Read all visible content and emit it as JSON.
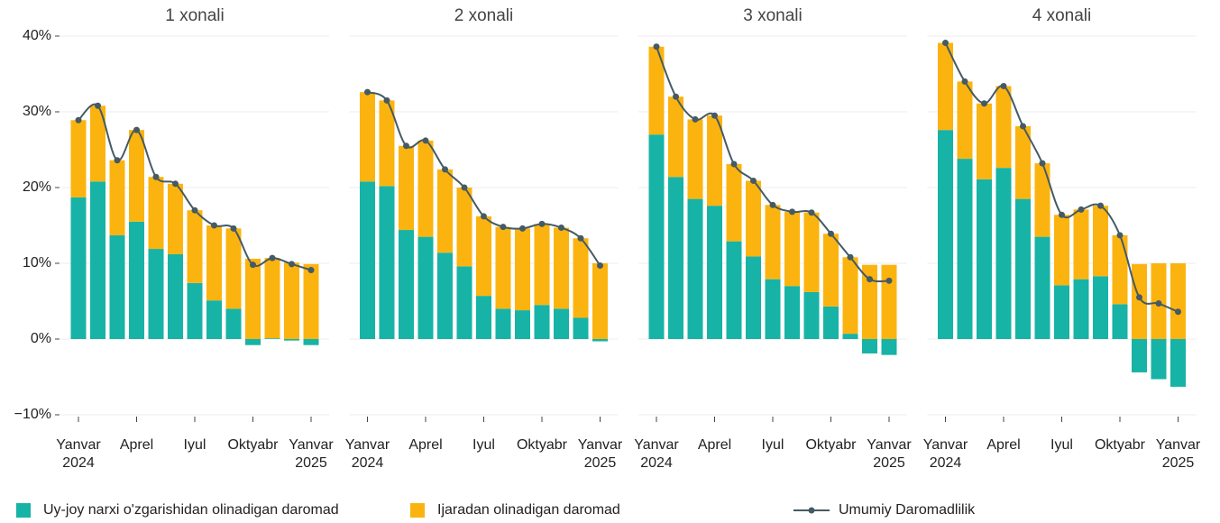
{
  "chart_data": [
    {
      "type": "bar",
      "stacked": true,
      "title": "1 xonali",
      "categories": [
        "Yanvar\n2024",
        null,
        null,
        "Aprel",
        null,
        null,
        "Iyul",
        null,
        null,
        "Oktyabr",
        null,
        null,
        "Yanvar\n2025"
      ],
      "ylim": [
        -10,
        40
      ],
      "yticks": [
        {
          "value": -10,
          "label": "−10%"
        },
        {
          "value": 0,
          "label": "0%"
        },
        {
          "value": 10,
          "label": "10%"
        },
        {
          "value": 20,
          "label": "20%"
        },
        {
          "value": 30,
          "label": "30%"
        },
        {
          "value": 40,
          "label": "40%"
        }
      ],
      "grid": true,
      "series": [
        {
          "name": "Uy-joy narxi o'zgarishidan olinadigan daromad",
          "color": "#17b3a6",
          "values": [
            18.7,
            20.8,
            13.7,
            15.5,
            11.9,
            11.2,
            7.4,
            5.1,
            4.0,
            -0.8,
            0.1,
            -0.2,
            -0.8
          ]
        },
        {
          "name": "Ijaradan olinadigan daromad",
          "color": "#fbb40f",
          "values": [
            10.2,
            10.0,
            9.9,
            12.1,
            9.5,
            9.3,
            9.6,
            9.9,
            10.6,
            10.6,
            10.6,
            10.1,
            9.9
          ]
        },
        {
          "name": "Umumiy Daromadlilik",
          "type": "line",
          "color": "#455a64",
          "values": [
            28.9,
            30.8,
            23.6,
            27.6,
            21.4,
            20.5,
            17.0,
            15.0,
            14.6,
            9.8,
            10.7,
            9.9,
            9.1
          ]
        }
      ]
    },
    {
      "type": "bar",
      "stacked": true,
      "title": "2 xonali",
      "categories": [
        "Yanvar\n2024",
        null,
        null,
        "Aprel",
        null,
        null,
        "Iyul",
        null,
        null,
        "Oktyabr",
        null,
        null,
        "Yanvar\n2025"
      ],
      "ylim": [
        -10,
        40
      ],
      "yticks": [
        -10,
        0,
        10,
        20,
        30,
        40
      ],
      "grid": true,
      "series": [
        {
          "color": "#17b3a6",
          "values": [
            20.8,
            20.2,
            14.4,
            13.5,
            11.4,
            9.6,
            5.7,
            4.0,
            3.8,
            4.5,
            4.0,
            2.8,
            -0.3
          ]
        },
        {
          "color": "#fbb40f",
          "values": [
            11.8,
            11.3,
            11.1,
            12.7,
            11.0,
            10.4,
            10.5,
            10.8,
            10.8,
            10.7,
            10.7,
            10.5,
            10.0
          ]
        },
        {
          "type": "line",
          "color": "#455a64",
          "values": [
            32.6,
            31.5,
            25.5,
            26.2,
            22.4,
            20.0,
            16.2,
            14.8,
            14.6,
            15.2,
            14.7,
            13.3,
            9.7
          ]
        }
      ]
    },
    {
      "type": "bar",
      "stacked": true,
      "title": "3 xonali",
      "categories": [
        "Yanvar\n2024",
        null,
        null,
        "Aprel",
        null,
        null,
        "Iyul",
        null,
        null,
        "Oktyabr",
        null,
        null,
        "Yanvar\n2025"
      ],
      "ylim": [
        -10,
        40
      ],
      "yticks": [
        -10,
        0,
        10,
        20,
        30,
        40
      ],
      "grid": true,
      "series": [
        {
          "color": "#17b3a6",
          "values": [
            27.0,
            21.4,
            18.5,
            17.6,
            12.9,
            10.9,
            7.9,
            7.0,
            6.2,
            4.3,
            0.7,
            -1.9,
            -2.1
          ]
        },
        {
          "color": "#fbb40f",
          "values": [
            11.6,
            10.6,
            10.5,
            11.9,
            10.2,
            10.0,
            9.8,
            9.8,
            10.5,
            9.6,
            10.1,
            9.8,
            9.8
          ]
        },
        {
          "type": "line",
          "color": "#455a64",
          "values": [
            38.6,
            32.0,
            29.0,
            29.5,
            23.1,
            20.9,
            17.7,
            16.8,
            16.7,
            13.9,
            10.8,
            7.9,
            7.7
          ]
        }
      ]
    },
    {
      "type": "bar",
      "stacked": true,
      "title": "4 xonali",
      "categories": [
        "Yanvar\n2024",
        null,
        null,
        "Aprel",
        null,
        null,
        "Iyul",
        null,
        null,
        "Oktyabr",
        null,
        null,
        "Yanvar\n2025"
      ],
      "ylim": [
        -10,
        40
      ],
      "yticks": [
        -10,
        0,
        10,
        20,
        30,
        40
      ],
      "grid": true,
      "series": [
        {
          "color": "#17b3a6",
          "values": [
            27.6,
            23.8,
            21.1,
            22.6,
            18.5,
            13.5,
            7.1,
            7.9,
            8.3,
            4.6,
            -4.4,
            -5.3,
            -6.3
          ]
        },
        {
          "color": "#fbb40f",
          "values": [
            11.5,
            10.2,
            10.0,
            10.8,
            9.6,
            9.7,
            9.3,
            9.2,
            9.3,
            9.1,
            9.9,
            10.0,
            10.0
          ]
        },
        {
          "type": "line",
          "color": "#455a64",
          "values": [
            39.1,
            34.0,
            31.1,
            33.4,
            28.1,
            23.2,
            16.4,
            17.1,
            17.6,
            13.7,
            5.5,
            4.7,
            3.6
          ]
        }
      ]
    }
  ]
}
